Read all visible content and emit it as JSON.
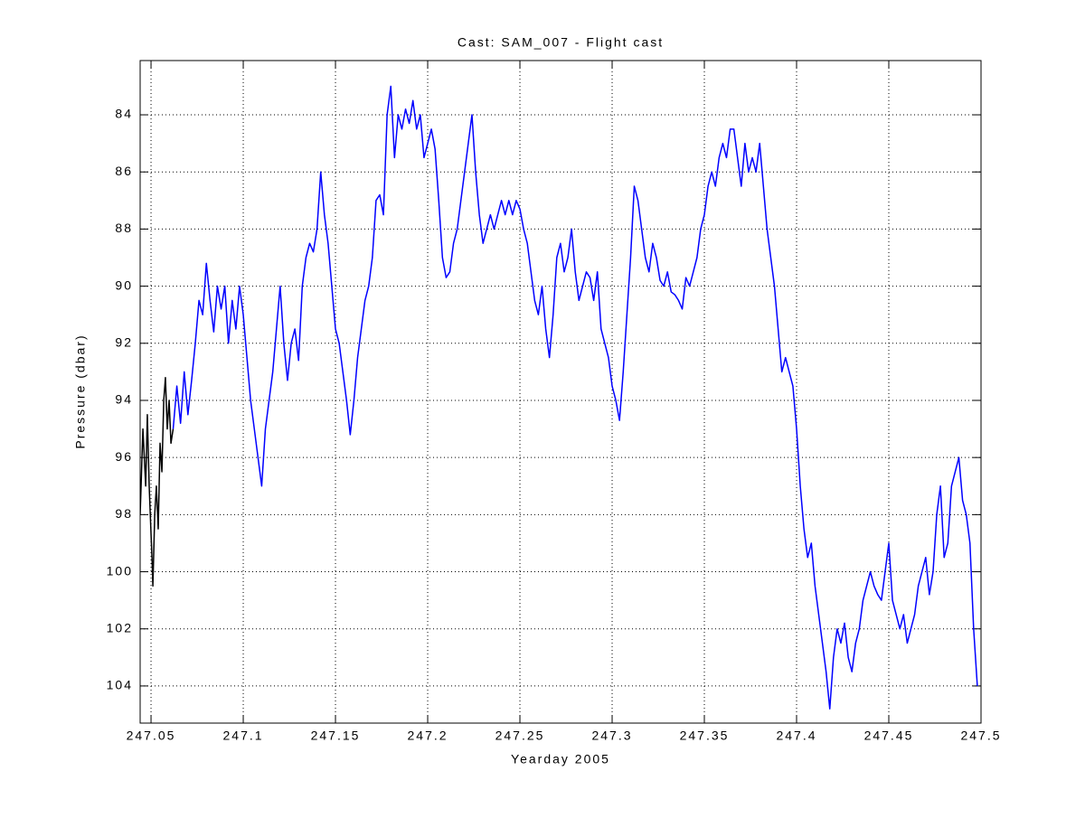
{
  "chart_data": {
    "type": "line",
    "title": "Cast: SAM_007 - Flight cast",
    "x_label": "Yearday 2005",
    "y_label": "Pressure (dbar)",
    "xlim": [
      247.0441,
      247.5
    ],
    "xticks": [
      247.05,
      247.1,
      247.15,
      247.2,
      247.25,
      247.3,
      247.35,
      247.4,
      247.45,
      247.5
    ],
    "ylim": [
      82.1,
      105.3
    ],
    "y_reversed": true,
    "yticks": [
      84,
      86,
      88,
      90,
      92,
      94,
      96,
      98,
      100,
      102,
      104
    ],
    "grid": true,
    "series": [
      {
        "color": "#000000",
        "x": [
          247.0441,
          247.0456,
          247.0471,
          247.048,
          247.049,
          247.0505,
          247.051,
          247.052,
          247.0529,
          247.0539,
          247.0549,
          247.0559,
          247.0569,
          247.0578,
          247.0588,
          247.0598,
          247.0608,
          247.062
        ],
        "values": [
          98,
          95,
          97,
          94.5,
          97,
          99.5,
          100.5,
          98,
          97,
          98.5,
          95.5,
          96.5,
          94,
          93.2,
          95,
          94,
          95.5,
          95
        ]
      },
      {
        "color": "#0000ff",
        "x": [
          247.062,
          247.064,
          247.066,
          247.068,
          247.07,
          247.072,
          247.074,
          247.076,
          247.078,
          247.08,
          247.082,
          247.084,
          247.086,
          247.088,
          247.09,
          247.092,
          247.094,
          247.096,
          247.098,
          247.1,
          247.102,
          247.104,
          247.106,
          247.108,
          247.11,
          247.112,
          247.114,
          247.116,
          247.118,
          247.12,
          247.122,
          247.124,
          247.126,
          247.128,
          247.13,
          247.132,
          247.134,
          247.136,
          247.138,
          247.14,
          247.142,
          247.144,
          247.146,
          247.148,
          247.15,
          247.152,
          247.154,
          247.156,
          247.158,
          247.16,
          247.162,
          247.164,
          247.166,
          247.168,
          247.17,
          247.172,
          247.174,
          247.176,
          247.178,
          247.18,
          247.182,
          247.184,
          247.186,
          247.188,
          247.19,
          247.192,
          247.194,
          247.196,
          247.198,
          247.2,
          247.202,
          247.204,
          247.206,
          247.208,
          247.21,
          247.212,
          247.214,
          247.216,
          247.218,
          247.22,
          247.222,
          247.224,
          247.226,
          247.228,
          247.23,
          247.232,
          247.234,
          247.236,
          247.238,
          247.24,
          247.242,
          247.244,
          247.246,
          247.248,
          247.25,
          247.252,
          247.254,
          247.256,
          247.258,
          247.26,
          247.262,
          247.264,
          247.266,
          247.268,
          247.27,
          247.272,
          247.274,
          247.276,
          247.278,
          247.28,
          247.282,
          247.284,
          247.286,
          247.288,
          247.29,
          247.292,
          247.294,
          247.296,
          247.298,
          247.3,
          247.302,
          247.304,
          247.306,
          247.308,
          247.31,
          247.312,
          247.314,
          247.316,
          247.318,
          247.32,
          247.322,
          247.324,
          247.326,
          247.328,
          247.33,
          247.332,
          247.334,
          247.336,
          247.338,
          247.34,
          247.342,
          247.344,
          247.346,
          247.348,
          247.35,
          247.352,
          247.354,
          247.356,
          247.358,
          247.36,
          247.362,
          247.364,
          247.366,
          247.368,
          247.37,
          247.372,
          247.374,
          247.376,
          247.378,
          247.38,
          247.382,
          247.384,
          247.386,
          247.388,
          247.39,
          247.392,
          247.394,
          247.396,
          247.398,
          247.4,
          247.402,
          247.404,
          247.406,
          247.408,
          247.41,
          247.412,
          247.414,
          247.416,
          247.418,
          247.42,
          247.422,
          247.424,
          247.426,
          247.428,
          247.43,
          247.432,
          247.434,
          247.436,
          247.438,
          247.44,
          247.442,
          247.444,
          247.446,
          247.448,
          247.45,
          247.452,
          247.454,
          247.456,
          247.458,
          247.46,
          247.462,
          247.464,
          247.466,
          247.468,
          247.47,
          247.472,
          247.474,
          247.476,
          247.478,
          247.48,
          247.482,
          247.484,
          247.486,
          247.488,
          247.49,
          247.492,
          247.494,
          247.496,
          247.498
        ],
        "values": [
          95,
          93.5,
          94.8,
          93,
          94.5,
          93.3,
          92,
          90.5,
          91,
          89.2,
          90.5,
          91.6,
          90,
          90.8,
          90,
          92,
          90.5,
          91.5,
          90,
          91,
          92.5,
          94,
          95,
          96,
          97,
          95,
          94,
          93,
          91.5,
          90,
          92,
          93.3,
          92,
          91.5,
          92.6,
          90,
          89,
          88.5,
          88.8,
          88,
          86,
          87.5,
          88.5,
          90,
          91.5,
          92,
          93,
          94,
          95.2,
          94,
          92.5,
          91.5,
          90.5,
          90,
          89,
          87,
          86.8,
          87.5,
          84,
          83,
          85.5,
          84,
          84.5,
          83.8,
          84.3,
          83.5,
          84.5,
          84,
          85.5,
          85,
          84.5,
          85.2,
          87,
          89,
          89.7,
          89.5,
          88.5,
          88,
          87,
          86,
          85,
          84,
          86,
          87.5,
          88.5,
          88,
          87.5,
          88,
          87.5,
          87,
          87.5,
          87,
          87.5,
          87,
          87.3,
          88,
          88.5,
          89.5,
          90.5,
          91,
          90,
          91.5,
          92.5,
          91,
          89,
          88.5,
          89.5,
          89,
          88,
          89.5,
          90.5,
          90,
          89.5,
          89.7,
          90.5,
          89.5,
          91.5,
          92,
          92.5,
          93.5,
          94,
          94.7,
          93,
          91,
          89,
          86.5,
          87,
          88,
          89,
          89.5,
          88.5,
          89,
          89.8,
          90,
          89.5,
          90.2,
          90.3,
          90.5,
          90.8,
          89.7,
          90,
          89.5,
          89,
          88,
          87.5,
          86.5,
          86,
          86.5,
          85.5,
          85,
          85.5,
          84.5,
          84.5,
          85.5,
          86.5,
          85,
          86,
          85.5,
          86,
          85,
          86.5,
          88,
          89,
          90,
          91.5,
          93,
          92.5,
          93,
          93.5,
          95,
          97,
          98.5,
          99.5,
          99,
          100.5,
          101.5,
          102.5,
          103.5,
          104.8,
          103,
          102,
          102.5,
          101.8,
          103,
          103.5,
          102.5,
          102,
          101,
          100.5,
          100,
          100.5,
          100.8,
          101,
          100,
          99,
          101,
          101.5,
          102,
          101.5,
          102.5,
          102,
          101.5,
          100.5,
          100,
          99.5,
          100.8,
          100,
          98,
          97,
          99.5,
          99,
          97,
          96.5,
          96,
          97.5,
          98,
          99,
          102,
          104
        ]
      }
    ]
  }
}
